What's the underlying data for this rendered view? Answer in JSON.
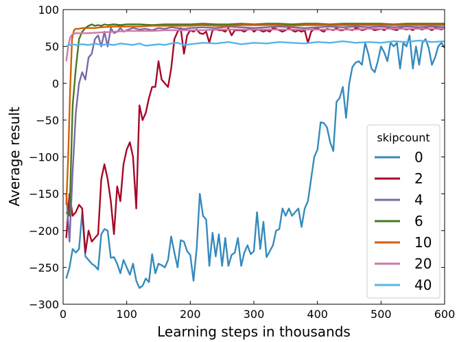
{
  "chart_data": {
    "type": "line",
    "title": "",
    "xlabel": "Learning steps in thousands",
    "ylabel": "Average result",
    "xlim": [
      0,
      600
    ],
    "ylim": [
      -300,
      100
    ],
    "xticks": [
      0,
      100,
      200,
      300,
      400,
      500,
      600
    ],
    "yticks": [
      -300,
      -250,
      -200,
      -150,
      -100,
      -50,
      0,
      50,
      100
    ],
    "ytick_labels": [
      "−300",
      "−250",
      "−200",
      "−150",
      "−100",
      "−50",
      "0",
      "50",
      "100"
    ],
    "grid": false,
    "legend": {
      "title": "skipcount",
      "placement": "lower-right"
    },
    "series": [
      {
        "name": "0",
        "color": "#348abd",
        "x": [
          5,
          10,
          15,
          20,
          25,
          30,
          35,
          40,
          45,
          50,
          55,
          60,
          65,
          70,
          75,
          80,
          85,
          90,
          95,
          100,
          105,
          110,
          115,
          120,
          125,
          130,
          135,
          140,
          145,
          150,
          155,
          160,
          165,
          170,
          175,
          180,
          185,
          190,
          195,
          200,
          205,
          210,
          215,
          220,
          225,
          230,
          235,
          240,
          245,
          250,
          255,
          260,
          265,
          270,
          275,
          280,
          285,
          290,
          295,
          300,
          305,
          310,
          315,
          320,
          325,
          330,
          335,
          340,
          345,
          350,
          355,
          360,
          365,
          370,
          375,
          380,
          385,
          390,
          395,
          400,
          405,
          410,
          415,
          420,
          425,
          430,
          435,
          440,
          445,
          450,
          455,
          460,
          465,
          470,
          475,
          480,
          485,
          490,
          495,
          500,
          505,
          510,
          515,
          520,
          525,
          530,
          535,
          540,
          545,
          550,
          555,
          560,
          565,
          570,
          575,
          580,
          585,
          590,
          595,
          600
        ],
        "y": [
          -265,
          -250,
          -225,
          -230,
          -225,
          -175,
          -235,
          -240,
          -245,
          -248,
          -253,
          -205,
          -198,
          -200,
          -237,
          -236,
          -245,
          -258,
          -240,
          -250,
          -260,
          -245,
          -268,
          -278,
          -275,
          -265,
          -270,
          -232,
          -258,
          -245,
          -247,
          -250,
          -240,
          -208,
          -230,
          -250,
          -213,
          -215,
          -228,
          -233,
          -268,
          -225,
          -150,
          -180,
          -185,
          -248,
          -203,
          -235,
          -205,
          -248,
          -210,
          -248,
          -233,
          -230,
          -210,
          -248,
          -230,
          -220,
          -232,
          -228,
          -175,
          -225,
          -188,
          -236,
          -228,
          -220,
          -200,
          -198,
          -170,
          -180,
          -170,
          -180,
          -175,
          -170,
          -195,
          -170,
          -160,
          -130,
          -100,
          -90,
          -53,
          -54,
          -60,
          -80,
          -92,
          -25,
          -20,
          -5,
          -47,
          0,
          22,
          28,
          30,
          25,
          55,
          40,
          20,
          15,
          30,
          50,
          42,
          30,
          55,
          50,
          55,
          20,
          55,
          50,
          65,
          20,
          50,
          25,
          55,
          60,
          48,
          25,
          35,
          50,
          55,
          48
        ]
      },
      {
        "name": "2",
        "color": "#a60628",
        "x": [
          5,
          10,
          15,
          20,
          25,
          30,
          35,
          40,
          45,
          50,
          55,
          60,
          65,
          70,
          75,
          80,
          85,
          90,
          95,
          100,
          105,
          110,
          115,
          120,
          125,
          130,
          135,
          140,
          145,
          150,
          155,
          160,
          165,
          170,
          175,
          180,
          185,
          190,
          195,
          200,
          205,
          210,
          215,
          220,
          225,
          230,
          235,
          240,
          245,
          250,
          255,
          260,
          265,
          270,
          275,
          280,
          285,
          290,
          295,
          300,
          305,
          310,
          315,
          320,
          325,
          330,
          335,
          340,
          345,
          350,
          355,
          360,
          365,
          370,
          375,
          380,
          385,
          390,
          395,
          400,
          405,
          410,
          415,
          420,
          425,
          430,
          435,
          440,
          445,
          450,
          455,
          460,
          465,
          470,
          475,
          480,
          485,
          490,
          495,
          500,
          505,
          510,
          515,
          520,
          525,
          530,
          535,
          540,
          545,
          550,
          555,
          560,
          565,
          570,
          575,
          580,
          585,
          590,
          595,
          600
        ],
        "y": [
          -210,
          -150,
          -180,
          -175,
          -165,
          -170,
          -230,
          -200,
          -215,
          -210,
          -205,
          -130,
          -110,
          -130,
          -160,
          -205,
          -140,
          -160,
          -110,
          -90,
          -80,
          -100,
          -170,
          -30,
          -50,
          -40,
          -20,
          -5,
          -5,
          30,
          5,
          0,
          -5,
          20,
          60,
          70,
          75,
          40,
          65,
          72,
          70,
          73,
          68,
          67,
          70,
          55,
          72,
          73,
          72,
          72,
          70,
          75,
          65,
          72,
          72,
          72,
          70,
          73,
          75,
          70,
          73,
          72,
          70,
          72,
          70,
          75,
          74,
          72,
          70,
          72,
          75,
          72,
          70,
          72,
          70,
          72,
          55,
          70,
          74,
          75,
          72,
          70,
          74,
          73,
          72,
          75,
          72,
          72,
          74,
          73,
          72,
          75,
          74,
          72,
          73,
          75,
          74,
          72,
          73,
          74,
          72,
          75,
          74,
          73,
          72,
          75,
          74,
          73,
          74,
          72,
          75,
          74,
          73,
          75,
          74,
          72,
          75,
          74,
          73,
          75
        ]
      },
      {
        "name": "4",
        "color": "#7a68a6",
        "x": [
          5,
          10,
          15,
          20,
          25,
          30,
          35,
          40,
          45,
          50,
          55,
          60,
          65,
          70,
          75,
          80,
          85,
          90,
          95,
          100,
          110,
          120,
          130,
          140,
          150,
          160,
          170,
          180,
          190,
          200,
          220,
          240,
          260,
          280,
          300,
          320,
          340,
          360,
          380,
          400,
          420,
          440,
          460,
          480,
          500,
          520,
          540,
          560,
          580,
          600
        ],
        "y": [
          -150,
          -215,
          -120,
          -40,
          0,
          15,
          5,
          35,
          40,
          60,
          65,
          50,
          70,
          50,
          75,
          68,
          70,
          75,
          70,
          72,
          75,
          73,
          74,
          72,
          75,
          74,
          76,
          75,
          74,
          75,
          76,
          75,
          77,
          76,
          75,
          76,
          77,
          76,
          75,
          76,
          77,
          76,
          77,
          76,
          77,
          76,
          77,
          76,
          77,
          76
        ]
      },
      {
        "name": "6",
        "color": "#467821",
        "x": [
          5,
          10,
          15,
          20,
          25,
          30,
          35,
          40,
          45,
          50,
          55,
          60,
          65,
          70,
          80,
          90,
          100,
          120,
          140,
          160,
          180,
          200,
          220,
          240,
          260,
          280,
          300,
          320,
          340,
          360,
          380,
          400,
          420,
          440,
          460,
          480,
          500,
          520,
          540,
          560,
          580,
          600
        ],
        "y": [
          -175,
          -180,
          -30,
          20,
          60,
          70,
          75,
          78,
          80,
          78,
          79,
          78,
          80,
          79,
          80,
          79,
          80,
          80,
          79,
          80,
          80,
          80,
          81,
          80,
          80,
          81,
          80,
          81,
          81,
          80,
          81,
          81,
          80,
          81,
          81,
          81,
          81,
          80,
          81,
          81,
          81,
          81
        ]
      },
      {
        "name": "10",
        "color": "#d55e00",
        "x": [
          5,
          8,
          11,
          14,
          17,
          20,
          25,
          30,
          40,
          50,
          60,
          80,
          100,
          120,
          140,
          160,
          180,
          200,
          220,
          240,
          260,
          280,
          300,
          320,
          340,
          360,
          380,
          400,
          420,
          440,
          460,
          480,
          500,
          520,
          540,
          560,
          580,
          600
        ],
        "y": [
          -165,
          -100,
          -10,
          60,
          72,
          74,
          74,
          75,
          75,
          75,
          76,
          77,
          77,
          77,
          78,
          78,
          78,
          78,
          79,
          78,
          78,
          79,
          79,
          79,
          79,
          78,
          79,
          79,
          79,
          79,
          79,
          79,
          79,
          79,
          79,
          79,
          79,
          79
        ]
      },
      {
        "name": "20",
        "color": "#cc79a7",
        "x": [
          5,
          8,
          11,
          14,
          17,
          20,
          30,
          40,
          60,
          80,
          100,
          120,
          140,
          160,
          180,
          200,
          220,
          240,
          260,
          280,
          300,
          320,
          340,
          360,
          380,
          400,
          420,
          440,
          460,
          480,
          500,
          520,
          540,
          560,
          580,
          600
        ],
        "y": [
          30,
          50,
          62,
          66,
          67,
          68,
          68,
          68,
          69,
          70,
          71,
          71,
          71,
          72,
          72,
          72,
          72,
          73,
          73,
          73,
          73,
          73,
          73,
          73,
          73,
          73,
          73,
          73,
          73,
          74,
          74,
          74,
          74,
          74,
          74,
          74
        ]
      },
      {
        "name": "40",
        "color": "#56b4e9",
        "x": [
          5,
          10,
          15,
          20,
          30,
          40,
          50,
          60,
          70,
          80,
          90,
          100,
          110,
          120,
          130,
          140,
          150,
          160,
          170,
          180,
          190,
          200,
          220,
          240,
          260,
          280,
          300,
          320,
          340,
          360,
          380,
          400,
          420,
          440,
          460,
          480,
          500,
          520,
          540,
          560,
          580,
          600
        ],
        "y": [
          50,
          52,
          53,
          52,
          53,
          52,
          54,
          52,
          53,
          52,
          54,
          53,
          52,
          54,
          51,
          52,
          53,
          52,
          54,
          55,
          52,
          53,
          55,
          54,
          56,
          53,
          55,
          54,
          56,
          55,
          54,
          56,
          55,
          57,
          55,
          56,
          55,
          57,
          56,
          58,
          56,
          57
        ]
      }
    ]
  }
}
